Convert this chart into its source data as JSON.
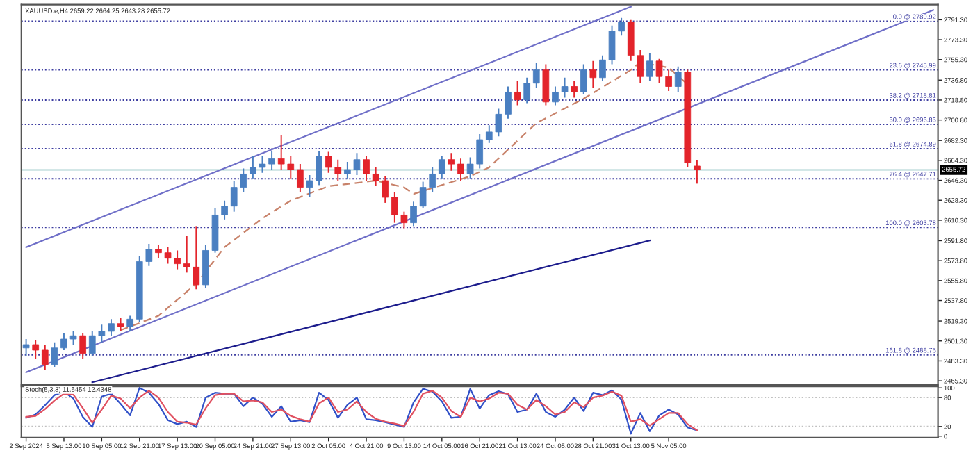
{
  "chart_data": [
    {
      "type": "candlestick",
      "title": "XAUUSD.e,H4 2659.22 2664.25 2643.28 2655.72",
      "categories": [
        null,
        null,
        null,
        null,
        null,
        null,
        null,
        null,
        null,
        null,
        null,
        null,
        null,
        null,
        null,
        null,
        null,
        null,
        null,
        null,
        null,
        null,
        null,
        null,
        null,
        null,
        null,
        null,
        null,
        null,
        null,
        null,
        null,
        null,
        null,
        null,
        null,
        null,
        null,
        null,
        null,
        null,
        null,
        null,
        null,
        null,
        null,
        null,
        null,
        null,
        null,
        null,
        null,
        null,
        null,
        null,
        null,
        null,
        null,
        null,
        null,
        null,
        null,
        null,
        null,
        null,
        null,
        null,
        null,
        null,
        null,
        null,
        null,
        null,
        null,
        null,
        null,
        null,
        null,
        null,
        null,
        null,
        null,
        null,
        null,
        null,
        null,
        null,
        null,
        null,
        null,
        null,
        null,
        null,
        null,
        null,
        null
      ],
      "ohlc": [
        [
          2495,
          2503,
          2488,
          2498
        ],
        [
          2498,
          2502,
          2485,
          2493
        ],
        [
          2493,
          2498,
          2475,
          2480
        ],
        [
          2480,
          2500,
          2478,
          2495
        ],
        [
          2495,
          2508,
          2493,
          2503
        ],
        [
          2503,
          2510,
          2498,
          2506
        ],
        [
          2506,
          2508,
          2485,
          2490
        ],
        [
          2490,
          2510,
          2488,
          2506
        ],
        [
          2506,
          2516,
          2500,
          2510
        ],
        [
          2510,
          2521,
          2506,
          2517
        ],
        [
          2517,
          2522,
          2510,
          2514
        ],
        [
          2514,
          2524,
          2510,
          2521
        ],
        [
          2521,
          2578,
          2518,
          2573
        ],
        [
          2573,
          2589,
          2569,
          2584
        ],
        [
          2584,
          2588,
          2576,
          2581
        ],
        [
          2581,
          2586,
          2571,
          2576
        ],
        [
          2576,
          2583,
          2566,
          2571
        ],
        [
          2571,
          2596,
          2563,
          2568
        ],
        [
          2568,
          2605,
          2548,
          2552
        ],
        [
          2552,
          2588,
          2549,
          2583
        ],
        [
          2583,
          2621,
          2581,
          2615
        ],
        [
          2615,
          2628,
          2611,
          2623
        ],
        [
          2623,
          2646,
          2618,
          2640
        ],
        [
          2640,
          2657,
          2636,
          2652
        ],
        [
          2652,
          2668,
          2648,
          2658
        ],
        [
          2658,
          2668,
          2653,
          2661
        ],
        [
          2661,
          2673,
          2656,
          2666
        ],
        [
          2666,
          2687,
          2656,
          2661
        ],
        [
          2661,
          2668,
          2648,
          2656
        ],
        [
          2656,
          2661,
          2636,
          2640
        ],
        [
          2640,
          2651,
          2631,
          2646
        ],
        [
          2646,
          2673,
          2642,
          2668
        ],
        [
          2668,
          2672,
          2653,
          2658
        ],
        [
          2658,
          2665,
          2646,
          2652
        ],
        [
          2652,
          2663,
          2648,
          2656
        ],
        [
          2656,
          2671,
          2651,
          2665
        ],
        [
          2665,
          2668,
          2646,
          2652
        ],
        [
          2652,
          2658,
          2641,
          2646
        ],
        [
          2646,
          2650,
          2626,
          2631
        ],
        [
          2631,
          2636,
          2608,
          2615
        ],
        [
          2615,
          2618,
          2603,
          2608
        ],
        [
          2608,
          2627,
          2605,
          2623
        ],
        [
          2623,
          2645,
          2621,
          2640
        ],
        [
          2640,
          2658,
          2636,
          2652
        ],
        [
          2652,
          2668,
          2648,
          2665
        ],
        [
          2665,
          2671,
          2655,
          2661
        ],
        [
          2661,
          2666,
          2646,
          2652
        ],
        [
          2652,
          2667,
          2648,
          2661
        ],
        [
          2661,
          2688,
          2657,
          2683
        ],
        [
          2683,
          2696,
          2680,
          2690
        ],
        [
          2690,
          2711,
          2686,
          2706
        ],
        [
          2706,
          2731,
          2702,
          2726
        ],
        [
          2726,
          2736,
          2714,
          2719
        ],
        [
          2719,
          2739,
          2716,
          2734
        ],
        [
          2734,
          2752,
          2730,
          2746
        ],
        [
          2746,
          2751,
          2714,
          2717
        ],
        [
          2717,
          2731,
          2714,
          2726
        ],
        [
          2726,
          2739,
          2721,
          2731
        ],
        [
          2731,
          2736,
          2721,
          2726
        ],
        [
          2726,
          2751,
          2724,
          2746
        ],
        [
          2746,
          2754,
          2730,
          2739
        ],
        [
          2739,
          2759,
          2736,
          2755
        ],
        [
          2755,
          2786,
          2751,
          2781
        ],
        [
          2781,
          2793,
          2777,
          2789
        ],
        [
          2789,
          2791,
          2754,
          2759
        ],
        [
          2759,
          2764,
          2734,
          2740
        ],
        [
          2740,
          2761,
          2736,
          2754
        ],
        [
          2754,
          2756,
          2734,
          2740
        ],
        [
          2740,
          2746,
          2727,
          2731
        ],
        [
          2731,
          2749,
          2726,
          2744
        ],
        [
          2744,
          2746,
          2658,
          2662
        ],
        [
          2659.22,
          2664.25,
          2643.28,
          2655.72
        ],
        null,
        null,
        null,
        null,
        null,
        null,
        null,
        null,
        null,
        null,
        null,
        null,
        null,
        null,
        null,
        null,
        null,
        null,
        null,
        null,
        null,
        null,
        null,
        null,
        null
      ],
      "colors": [
        "#4a7fc1",
        "#e3242b",
        "#e3242b",
        "#4a7fc1",
        "#4a7fc1",
        "#4a7fc1",
        "#e3242b",
        "#4a7fc1",
        "#4a7fc1",
        "#4a7fc1",
        "#e3242b",
        "#4a7fc1",
        "#4a7fc1",
        "#4a7fc1",
        "#e3242b",
        "#e3242b",
        "#e3242b",
        "#e3242b",
        "#e3242b",
        "#4a7fc1",
        "#4a7fc1",
        "#4a7fc1",
        "#4a7fc1",
        "#4a7fc1",
        "#4a7fc1",
        "#4a7fc1",
        "#4a7fc1",
        "#e3242b",
        "#e3242b",
        "#e3242b",
        "#4a7fc1",
        "#4a7fc1",
        "#e3242b",
        "#e3242b",
        "#4a7fc1",
        "#4a7fc1",
        "#e3242b",
        "#e3242b",
        "#e3242b",
        "#e3242b",
        "#e3242b",
        "#4a7fc1",
        "#4a7fc1",
        "#4a7fc1",
        "#4a7fc1",
        "#e3242b",
        "#e3242b",
        "#4a7fc1",
        "#4a7fc1",
        "#4a7fc1",
        "#4a7fc1",
        "#4a7fc1",
        "#e3242b",
        "#4a7fc1",
        "#4a7fc1",
        "#e3242b",
        "#4a7fc1",
        "#4a7fc1",
        "#e3242b",
        "#4a7fc1",
        "#e3242b",
        "#4a7fc1",
        "#4a7fc1",
        "#4a7fc1",
        "#e3242b",
        "#e3242b",
        "#4a7fc1",
        "#e3242b",
        "#e3242b",
        "#4a7fc1",
        "#e3242b",
        "#e3242b",
        null,
        null,
        null,
        null,
        null,
        null,
        null,
        null,
        null,
        null,
        null,
        null,
        null,
        null,
        null,
        null,
        null,
        null,
        null,
        null,
        null,
        null,
        null,
        null,
        null
      ],
      "series": [
        {
          "type": "line",
          "line_style": "dashed",
          "color": "#c8826a",
          "values": [
            null,
            null,
            null,
            null,
            null,
            null,
            null,
            null,
            null,
            null,
            2511,
            null,
            null,
            null,
            2524,
            null,
            null,
            null,
            2553,
            null,
            null,
            2586,
            null,
            null,
            null,
            2612,
            null,
            null,
            2628,
            null,
            null,
            null,
            2641,
            null,
            null,
            null,
            null,
            2646,
            null,
            null,
            2640,
            2634,
            null,
            null,
            2642,
            null,
            null,
            2650,
            null,
            2658,
            null,
            null,
            null,
            null,
            2698,
            null,
            null,
            null,
            null,
            2720,
            null,
            null,
            null,
            null,
            2746,
            2753,
            null,
            null,
            2748,
            null,
            2733,
            null,
            null,
            null,
            null,
            null,
            null,
            null,
            null,
            null,
            null,
            null,
            null,
            null,
            null,
            null,
            null,
            null,
            null,
            null,
            null,
            null,
            null,
            null,
            null,
            null,
            null
          ]
        },
        {
          "type": "line",
          "line_style": "solid",
          "color": "#6f6fc8",
          "values": [
            2586,
            null,
            null,
            null,
            null,
            null,
            null,
            null,
            null,
            null,
            null,
            null,
            null,
            null,
            null,
            null,
            null,
            null,
            null,
            null,
            null,
            null,
            null,
            null,
            null,
            null,
            null,
            null,
            null,
            null,
            null,
            null,
            null,
            null,
            null,
            null,
            null,
            null,
            null,
            null,
            null,
            null,
            null,
            null,
            null,
            null,
            null,
            null,
            null,
            null,
            null,
            null,
            null,
            null,
            null,
            null,
            null,
            null,
            null,
            null,
            null,
            null,
            null,
            null,
            2803,
            null,
            null,
            null,
            null,
            null,
            null,
            null,
            null,
            null,
            null,
            null,
            null,
            null,
            null,
            null,
            null,
            null,
            null,
            null,
            null,
            null,
            null,
            null,
            null,
            null,
            null,
            null,
            null,
            null,
            null,
            null,
            null
          ]
        },
        {
          "type": "line",
          "line_style": "solid",
          "color": "#6f6fc8",
          "values": [
            2473,
            null,
            null,
            null,
            null,
            null,
            null,
            null,
            null,
            null,
            null,
            null,
            null,
            null,
            null,
            null,
            null,
            null,
            null,
            null,
            null,
            null,
            null,
            null,
            null,
            null,
            null,
            null,
            null,
            null,
            null,
            null,
            null,
            null,
            null,
            null,
            null,
            null,
            null,
            null,
            null,
            null,
            null,
            null,
            null,
            null,
            null,
            null,
            null,
            null,
            null,
            null,
            null,
            null,
            null,
            null,
            null,
            null,
            null,
            null,
            null,
            null,
            null,
            null,
            null,
            null,
            null,
            null,
            null,
            null,
            null,
            null,
            null,
            null,
            null,
            null,
            null,
            null,
            null,
            null,
            null,
            null,
            null,
            null,
            null,
            null,
            null,
            null,
            null,
            null,
            null,
            null,
            null,
            null,
            null,
            null,
            2800
          ]
        },
        {
          "type": "line",
          "line_style": "solid",
          "color": "#1c1c8c",
          "values": [
            null,
            null,
            null,
            null,
            null,
            null,
            null,
            2464,
            null,
            null,
            null,
            null,
            null,
            null,
            null,
            null,
            null,
            null,
            null,
            null,
            null,
            null,
            null,
            null,
            null,
            null,
            null,
            null,
            null,
            null,
            null,
            null,
            null,
            null,
            null,
            null,
            null,
            null,
            null,
            null,
            null,
            null,
            null,
            null,
            null,
            null,
            null,
            null,
            null,
            null,
            null,
            null,
            null,
            null,
            null,
            null,
            null,
            null,
            null,
            null,
            null,
            null,
            null,
            null,
            null,
            null,
            2592,
            null,
            null,
            null,
            null,
            null,
            null,
            null,
            null,
            null,
            null,
            null,
            null,
            null,
            null,
            null,
            null,
            null,
            null,
            null,
            null,
            null,
            null,
            null,
            null,
            null,
            null,
            null,
            null,
            null,
            null
          ]
        }
      ],
      "ref_lines": [
        {
          "axis": "y",
          "value": 2655.72,
          "label": "2655.72",
          "color": "#a8d0d0",
          "line_style": "solid"
        },
        {
          "axis": "y",
          "value": 2789.92,
          "label": "0.0 @ 2789.92",
          "color": "#3c3ca0",
          "line_style": "dotted"
        },
        {
          "axis": "y",
          "value": 2745.99,
          "label": "23.6 @ 2745.99",
          "color": "#3c3ca0",
          "line_style": "dotted"
        },
        {
          "axis": "y",
          "value": 2718.81,
          "label": "38.2 @ 2718.81",
          "color": "#3c3ca0",
          "line_style": "dotted"
        },
        {
          "axis": "y",
          "value": 2696.85,
          "label": "50.0 @ 2696.85",
          "color": "#3c3ca0",
          "line_style": "dotted"
        },
        {
          "axis": "y",
          "value": 2674.89,
          "label": "61.8 @ 2674.89",
          "color": "#3c3ca0",
          "line_style": "dotted"
        },
        {
          "axis": "y",
          "value": 2647.71,
          "label": "76.4 @ 2647.71",
          "color": "#3c3ca0",
          "line_style": "dotted"
        },
        {
          "axis": "y",
          "value": 2603.78,
          "label": "100.0 @ 2603.78",
          "color": "#3c3ca0",
          "line_style": "dotted"
        },
        {
          "axis": "y",
          "value": 2488.75,
          "label": "161.8 @ 2488.75",
          "color": "#3c3ca0",
          "line_style": "dotted"
        }
      ],
      "ylim": [
        2461.5,
        2805
      ],
      "yticks": [
        {
          "value": 2791.3,
          "label": "2791.30"
        },
        {
          "value": 2773.3,
          "label": "2773.30"
        },
        {
          "value": 2755.3,
          "label": "2755.30"
        },
        {
          "value": 2736.8,
          "label": "2736.80"
        },
        {
          "value": 2718.8,
          "label": "2718.80"
        },
        {
          "value": 2700.8,
          "label": "2700.80"
        },
        {
          "value": 2682.3,
          "label": "2682.30"
        },
        {
          "value": 2664.3,
          "label": "2664.30"
        },
        {
          "value": 2646.3,
          "label": "2646.30"
        },
        {
          "value": 2628.3,
          "label": "2628.30"
        },
        {
          "value": 2610.3,
          "label": "2610.30"
        },
        {
          "value": 2591.8,
          "label": "2591.80"
        },
        {
          "value": 2573.8,
          "label": "2573.80"
        },
        {
          "value": 2555.8,
          "label": "2555.80"
        },
        {
          "value": 2537.8,
          "label": "2537.80"
        },
        {
          "value": 2519.3,
          "label": "2519.30"
        },
        {
          "value": 2501.3,
          "label": "2501.30"
        },
        {
          "value": 2483.3,
          "label": "2483.30"
        },
        {
          "value": 2465.3,
          "label": "2465.30"
        }
      ],
      "tick_labels": "y"
    },
    {
      "type": "line",
      "title": "Stoch(5,3,3) 11.5454 12.4348",
      "categories": [
        "2 Sep 2024",
        null,
        null,
        null,
        "5 Sep 13:00",
        null,
        null,
        null,
        "10 Sep 05:00",
        null,
        null,
        null,
        "12 Sep 21:00",
        null,
        null,
        null,
        "17 Sep 13:00",
        null,
        null,
        null,
        "20 Sep 05:00",
        null,
        null,
        null,
        "24 Sep 21:00",
        null,
        null,
        null,
        "27 Sep 13:00",
        null,
        null,
        null,
        "2 Oct 05:00",
        null,
        null,
        null,
        "4 Oct 21:00",
        null,
        null,
        null,
        "9 Oct 13:00",
        null,
        null,
        null,
        "14 Oct 05:00",
        null,
        null,
        null,
        "16 Oct 21:00",
        null,
        null,
        null,
        "21 Oct 13:00",
        null,
        null,
        null,
        "24 Oct 05:00",
        null,
        null,
        null,
        "28 Oct 21:00",
        null,
        null,
        null,
        "31 Oct 13:00",
        null,
        null,
        null,
        "5 Nov 05:00",
        null,
        null,
        null,
        null,
        null,
        null,
        null,
        null,
        null,
        null,
        null,
        null,
        null,
        null,
        null,
        null,
        null,
        null,
        null,
        null,
        null,
        null,
        null,
        null,
        null,
        null,
        null,
        null
      ],
      "series": [
        {
          "color": "#3050c8",
          "values": [
            38,
            45,
            64,
            85,
            92,
            78,
            40,
            19,
            82,
            88,
            67,
            43,
            100,
            90,
            67,
            33,
            25,
            30,
            19,
            80,
            90,
            88,
            88,
            62,
            80,
            67,
            40,
            62,
            30,
            33,
            29,
            90,
            75,
            38,
            65,
            80,
            35,
            33,
            29,
            24,
            19,
            70,
            98,
            92,
            72,
            38,
            40,
            98,
            57,
            85,
            93,
            87,
            50,
            55,
            88,
            50,
            40,
            55,
            80,
            52,
            90,
            85,
            95,
            76,
            5,
            48,
            10,
            43,
            55,
            45,
            18,
            12,
            null,
            null,
            null,
            null,
            null,
            null,
            null,
            null,
            null,
            null,
            null,
            null,
            null,
            null,
            null,
            null,
            null,
            null,
            null,
            null,
            null,
            null,
            null,
            null,
            null
          ]
        },
        {
          "color": "#e05060",
          "values": [
            40,
            42,
            56,
            74,
            88,
            86,
            58,
            28,
            55,
            84,
            78,
            58,
            80,
            94,
            80,
            50,
            30,
            28,
            24,
            58,
            85,
            88,
            88,
            72,
            74,
            70,
            50,
            55,
            42,
            35,
            30,
            68,
            80,
            50,
            55,
            72,
            50,
            36,
            30,
            26,
            21,
            50,
            88,
            94,
            80,
            52,
            40,
            80,
            72,
            78,
            90,
            88,
            65,
            55,
            75,
            62,
            45,
            50,
            70,
            60,
            80,
            84,
            92,
            84,
            30,
            35,
            22,
            35,
            48,
            48,
            25,
            12,
            null,
            null,
            null,
            null,
            null,
            null,
            null,
            null,
            null,
            null,
            null,
            null,
            null,
            null,
            null,
            null,
            null,
            null,
            null,
            null,
            null,
            null,
            null,
            null,
            null
          ]
        }
      ],
      "ref_lines": [
        {
          "axis": "y",
          "value": 80,
          "color": "#c0c0c0",
          "line_style": "dotted"
        },
        {
          "axis": "y",
          "value": 20,
          "color": "#c0c0c0",
          "line_style": "dotted"
        }
      ],
      "ylim": [
        -3,
        103
      ],
      "yticks": [
        0,
        20,
        80,
        100
      ]
    }
  ]
}
